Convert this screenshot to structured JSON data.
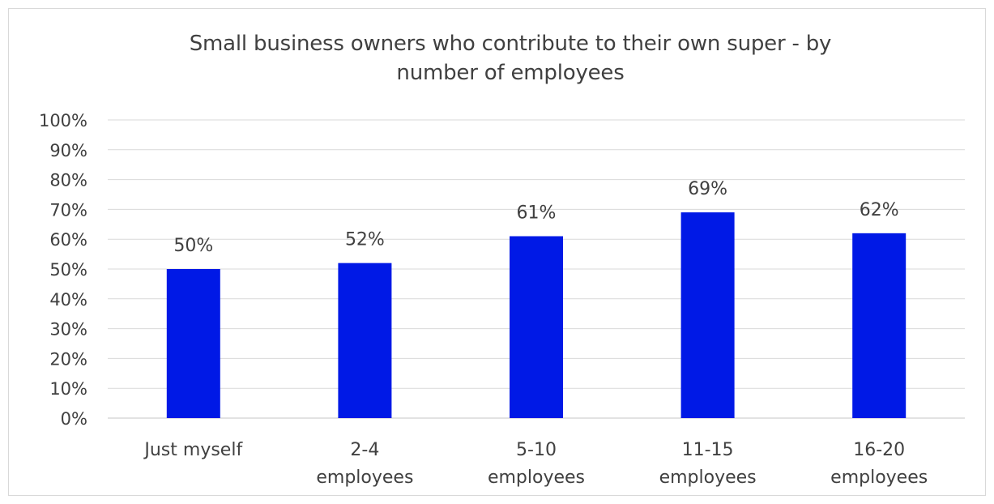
{
  "chart_data": {
    "type": "bar",
    "title_lines": [
      "Small business owners who contribute to their own super -  by",
      "number of employees"
    ],
    "categories": [
      [
        "Just myself"
      ],
      [
        "2-4",
        "employees"
      ],
      [
        "5-10",
        "employees"
      ],
      [
        "11-15",
        "employees"
      ],
      [
        "16-20",
        "employees"
      ]
    ],
    "values": [
      50,
      52,
      61,
      69,
      62
    ],
    "data_labels": [
      "50%",
      "52%",
      "61%",
      "69%",
      "62%"
    ],
    "y_ticks": [
      "0%",
      "10%",
      "20%",
      "30%",
      "40%",
      "50%",
      "60%",
      "70%",
      "80%",
      "90%",
      "100%"
    ],
    "ylim": [
      0,
      100
    ],
    "grid": true,
    "bar_color": "#0019e6",
    "grid_color": "#d9d9d9",
    "text_color": "#404040"
  }
}
